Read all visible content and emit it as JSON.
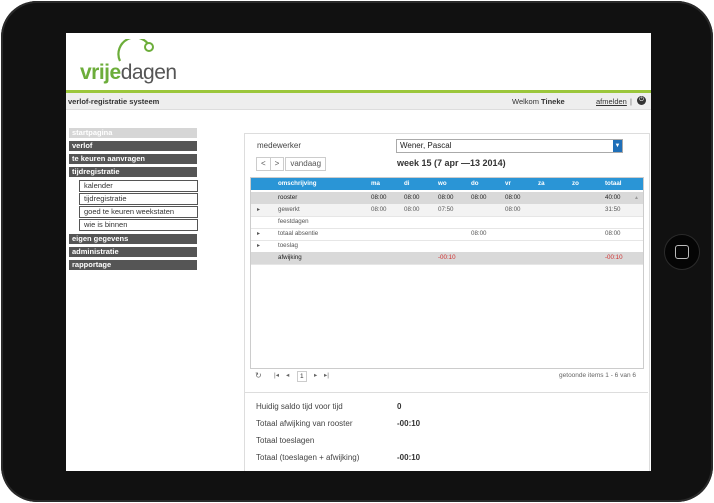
{
  "app": {
    "logo_part1": "vrije",
    "logo_part2": "dagen",
    "system_title": "verlof-registratie systeem"
  },
  "header": {
    "welcome_prefix": "Welkom",
    "user_name": "Tineke",
    "logout_label": "afmelden",
    "separator": "|",
    "power_icon": "power-icon"
  },
  "nav": {
    "items": [
      {
        "label": "startpagina",
        "active": true
      },
      {
        "label": "verlof"
      },
      {
        "label": "te keuren aanvragen"
      },
      {
        "label": "tijdregistratie"
      }
    ],
    "sub_items": [
      {
        "label": "kalender"
      },
      {
        "label": "tijdregistratie"
      },
      {
        "label": "goed te keuren weekstaten"
      },
      {
        "label": "wie is binnen"
      }
    ],
    "items_after": [
      {
        "label": "eigen gegevens"
      },
      {
        "label": "administratie"
      },
      {
        "label": "rapportage"
      }
    ]
  },
  "main": {
    "employee_label": "medewerker",
    "employee_value": "Wener, Pascal",
    "prev_label": "<",
    "next_label": ">",
    "today_label": "vandaag",
    "week_label": "week 15 (7 apr —13 2014)"
  },
  "grid": {
    "columns": [
      "omschrijving",
      "ma",
      "di",
      "wo",
      "do",
      "vr",
      "za",
      "zo",
      "totaal"
    ],
    "rows": [
      {
        "expander": "",
        "cells": [
          "rooster",
          "08:00",
          "08:00",
          "08:00",
          "08:00",
          "08:00",
          "",
          "",
          "40:00"
        ],
        "style": "dark"
      },
      {
        "expander": "▸",
        "cells": [
          "gewerkt",
          "08:00",
          "08:00",
          "07:50",
          "",
          "08:00",
          "",
          "",
          "31:50"
        ],
        "style": "light"
      },
      {
        "expander": "",
        "cells": [
          "feestdagen",
          "",
          "",
          "",
          "",
          "",
          "",
          "",
          ""
        ],
        "style": ""
      },
      {
        "expander": "▸",
        "cells": [
          "totaal absentie",
          "",
          "",
          "",
          "08:00",
          "",
          "",
          "",
          "08:00"
        ],
        "style": ""
      },
      {
        "expander": "▸",
        "cells": [
          "toeslag",
          "",
          "",
          "",
          "",
          "",
          "",
          "",
          ""
        ],
        "style": ""
      },
      {
        "expander": "",
        "cells": [
          "afwijking",
          "",
          "",
          "-00:10",
          "",
          "",
          "",
          "",
          "-00:10"
        ],
        "style": "dark"
      }
    ],
    "scroll_up_glyph": "▲"
  },
  "pager": {
    "refresh_icon": "refresh-icon",
    "first": "|◂",
    "prev": "◂",
    "page": "1",
    "next": "▸",
    "last": "▸|",
    "items_text": "getoonde items 1 - 6 van 6"
  },
  "summary": [
    {
      "label": "Huidig saldo tijd voor tijd",
      "value": "0"
    },
    {
      "label": "Totaal afwijking van rooster",
      "value": "-00:10"
    },
    {
      "label": "Totaal toeslagen",
      "value": ""
    },
    {
      "label": "Totaal (toeslagen + afwijking)",
      "value": "-00:10"
    }
  ],
  "colors": {
    "accent_green": "#9bc63b",
    "grid_header_blue": "#2a95d6",
    "nav_dark": "#555555",
    "negative_red": "#d03030"
  }
}
